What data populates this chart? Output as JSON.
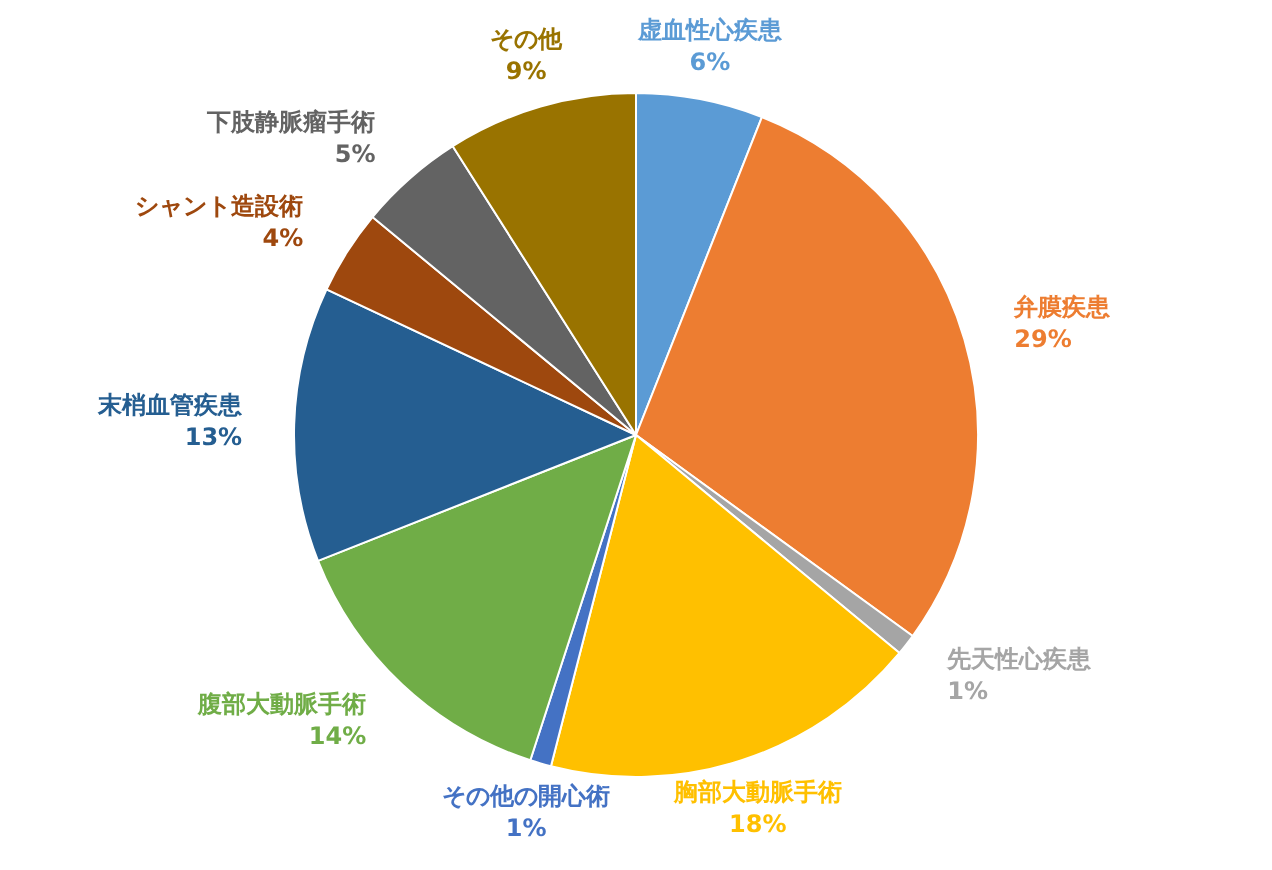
{
  "chart_data": {
    "type": "pie",
    "categories": [
      "虚血性心疾患",
      "弁膜疾患",
      "先天性心疾患",
      "胸部大動脈手術",
      "その他の開心術",
      "腹部大動脈手術",
      "末梢血管疾患",
      "シャント造設術",
      "下肢静脈瘤手術",
      "その他"
    ],
    "values": [
      6,
      29,
      1,
      18,
      1,
      14,
      13,
      4,
      5,
      9
    ],
    "colors": [
      "#5b9bd5",
      "#ed7d31",
      "#a5a5a5",
      "#ffc000",
      "#4472c4",
      "#70ad47",
      "#255e91",
      "#9e480e",
      "#636363",
      "#997300"
    ],
    "value_labels": [
      "6%",
      "29%",
      "1%",
      "18%",
      "1%",
      "14%",
      "13%",
      "4%",
      "5%",
      "9%"
    ],
    "legend": false
  }
}
